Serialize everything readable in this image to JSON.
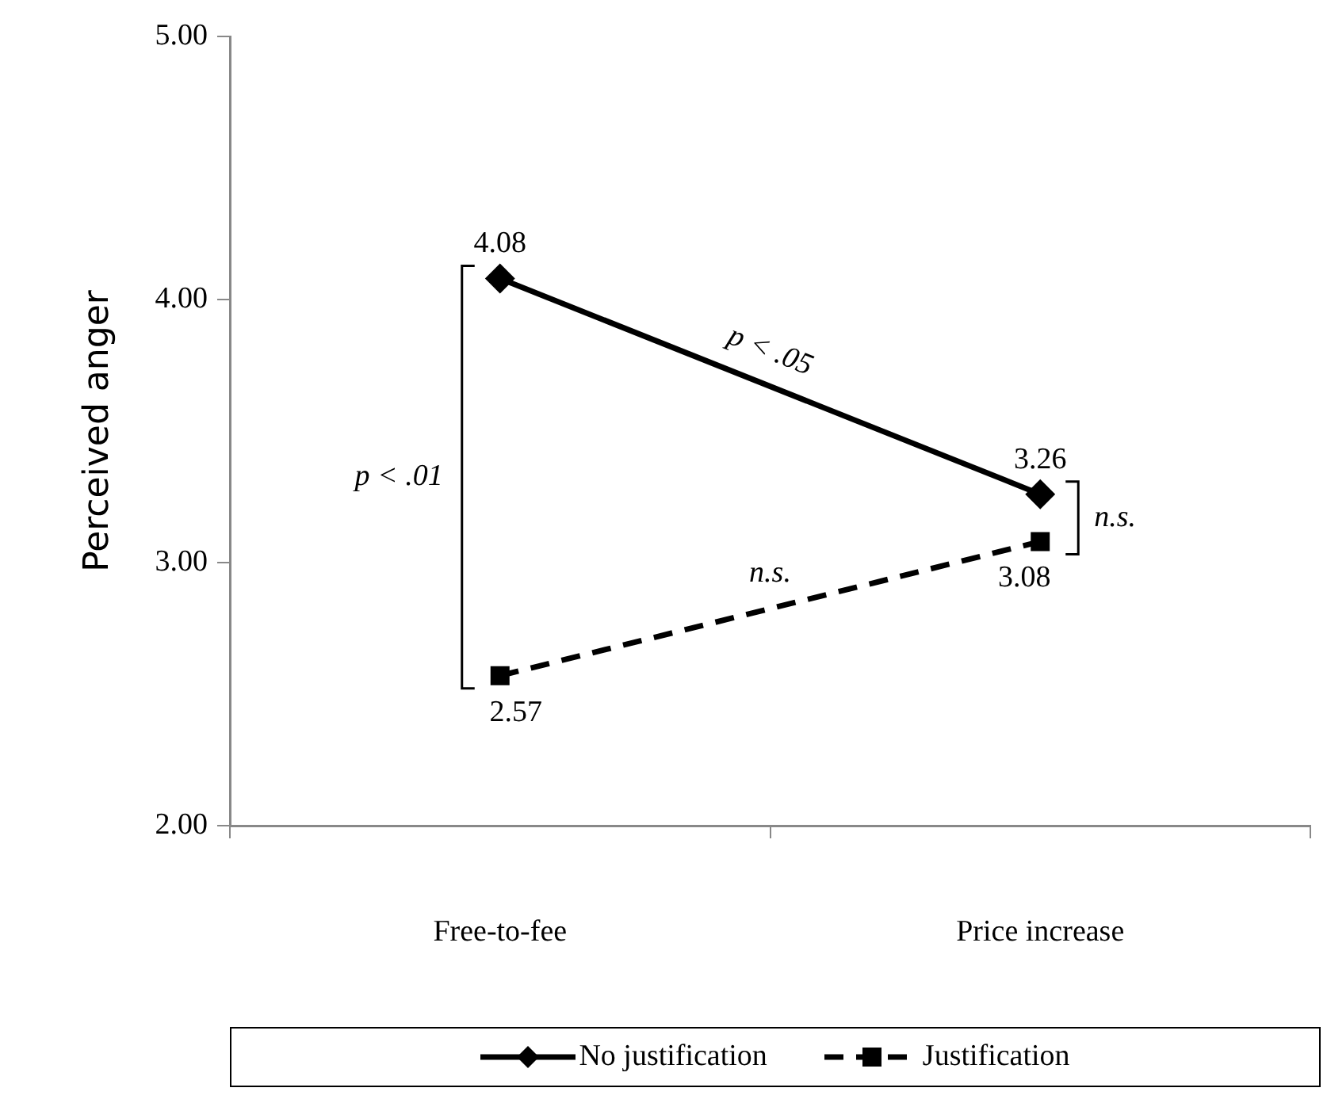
{
  "chart_data": {
    "type": "line",
    "ylabel": "Perceived anger",
    "categories": [
      "Free-to-fee",
      "Price increase"
    ],
    "series": [
      {
        "name": "No justification",
        "color": "#000000",
        "values": [
          4.08,
          3.26
        ],
        "marker": "diamond",
        "line_style": "solid"
      },
      {
        "name": "Justification",
        "color": "#000000",
        "values": [
          2.57,
          3.08
        ],
        "marker": "square",
        "line_style": "dashed"
      }
    ],
    "ylim": [
      2,
      5
    ],
    "yticks": [
      {
        "value": 2,
        "label": "2.00"
      },
      {
        "value": 3,
        "label": "3.00"
      },
      {
        "value": 4,
        "label": "4.00"
      },
      {
        "value": 5,
        "label": "5.00"
      }
    ],
    "grid": false,
    "legend": "bottom",
    "data_labels": true,
    "annotations": [
      "p < .01",
      "p < .05",
      "n.s.",
      "n.s."
    ]
  }
}
